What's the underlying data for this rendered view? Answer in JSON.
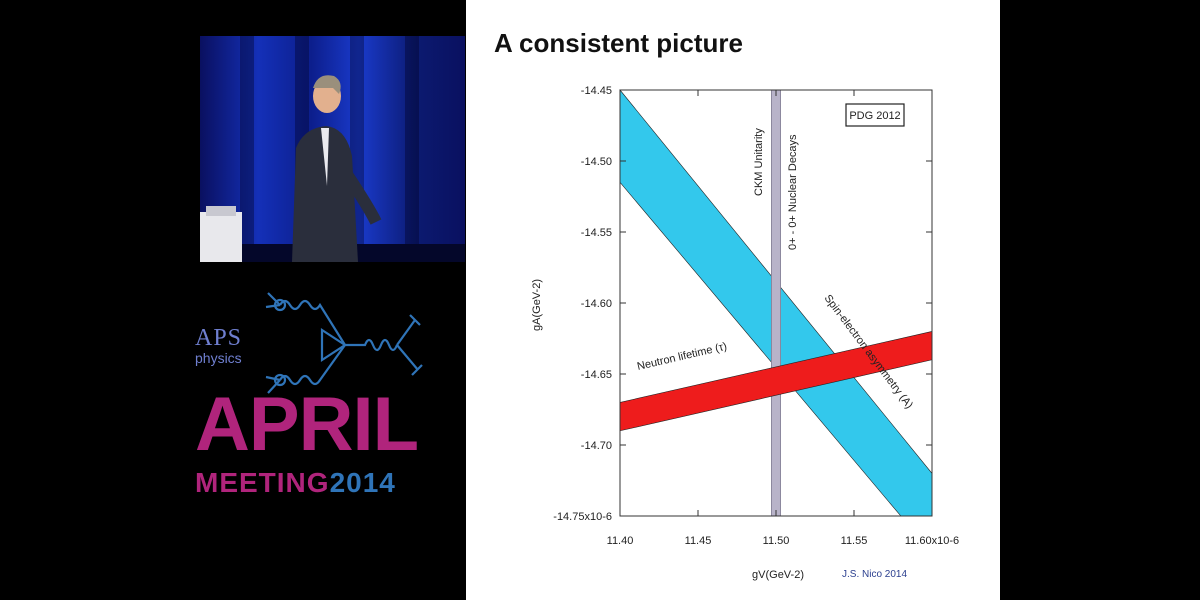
{
  "colors": {
    "band_cyan": "#33c8ec",
    "band_red": "#ee1c1c",
    "band_gray": "#b8b3c9",
    "aps_pink": "#b0247c",
    "aps_blue": "#2f74b8"
  },
  "branding": {
    "aps": "APS",
    "physics": "physics",
    "april": "APRIL",
    "meeting": "MEETING",
    "year": "2014"
  },
  "slide": {
    "title": "A consistent picture",
    "credit": "J.S. Nico 2014"
  },
  "chart_data": {
    "type": "area",
    "xlabel": "gV(GeV-2)",
    "ylabel": "gA(GeV-2)",
    "xlim": [
      11.4,
      11.6
    ],
    "ylim": [
      -14.75,
      -14.45
    ],
    "x_ticks": [
      "11.40",
      "11.45",
      "11.50",
      "11.55",
      "11.60x10-6"
    ],
    "y_ticks": [
      "-14.45",
      "-14.50",
      "-14.55",
      "-14.60",
      "-14.65",
      "-14.70",
      "-14.75x10-6"
    ],
    "legend_box": "PDG 2012",
    "bands": [
      {
        "label": "Spin-electron asymmetry (A)",
        "color": "#33c8ec",
        "upper": [
          [
            11.4,
            -14.45
          ],
          [
            11.6,
            -14.72
          ]
        ],
        "lower": [
          [
            11.4,
            -14.515
          ],
          [
            11.58,
            -14.75
          ],
          [
            11.6,
            -14.75
          ]
        ]
      },
      {
        "label": "Neutron lifetime (τ)",
        "color": "#ee1c1c",
        "upper": [
          [
            11.4,
            -14.67
          ],
          [
            11.6,
            -14.62
          ]
        ],
        "lower": [
          [
            11.4,
            -14.69
          ],
          [
            11.6,
            -14.64
          ]
        ]
      },
      {
        "label": "CKM Unitarity",
        "color": "#b8b3c9",
        "upper": [
          [
            11.497,
            -14.45
          ],
          [
            11.503,
            -14.45
          ]
        ],
        "lower": [
          [
            11.497,
            -14.75
          ],
          [
            11.503,
            -14.75
          ]
        ]
      }
    ],
    "annotations": [
      "CKM Unitarity",
      "0+ - 0+ Nuclear Decays"
    ],
    "grid": false
  }
}
